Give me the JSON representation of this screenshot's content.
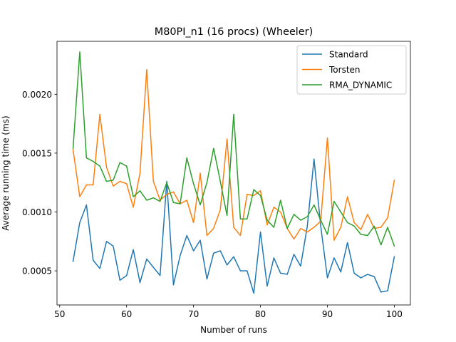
{
  "chart_data": {
    "type": "line",
    "title": "M80PI_n1 (16 procs) (Wheeler)",
    "xlabel": "Number of runs",
    "ylabel": "Average running time (ms)",
    "xlim": [
      49.6,
      102.4
    ],
    "ylim": [
      0.00021,
      0.00245
    ],
    "xticks": [
      50,
      60,
      70,
      80,
      90,
      100
    ],
    "yticks": [
      0.0005,
      0.001,
      0.0015,
      0.002
    ],
    "ytick_labels": [
      "0.0005",
      "0.0010",
      "0.0015",
      "0.0020"
    ],
    "grid": false,
    "legend_position": "top-right",
    "x": [
      52,
      53,
      54,
      55,
      56,
      57,
      58,
      59,
      60,
      61,
      62,
      63,
      64,
      65,
      66,
      67,
      68,
      69,
      70,
      71,
      72,
      73,
      74,
      75,
      76,
      77,
      78,
      79,
      80,
      81,
      82,
      83,
      84,
      85,
      86,
      87,
      88,
      89,
      90,
      91,
      92,
      93,
      94,
      95,
      96,
      97,
      98,
      99,
      100
    ],
    "series": [
      {
        "name": "Standard",
        "color": "#1f77b4",
        "values": [
          0.00058,
          0.00091,
          0.00106,
          0.00059,
          0.00052,
          0.00075,
          0.00071,
          0.00042,
          0.00046,
          0.00068,
          0.0004,
          0.0006,
          0.00053,
          0.00046,
          0.00126,
          0.00038,
          0.00063,
          0.0008,
          0.00067,
          0.00076,
          0.00043,
          0.00065,
          0.00067,
          0.00055,
          0.00062,
          0.0005,
          0.0005,
          0.00031,
          0.00083,
          0.00037,
          0.00061,
          0.00048,
          0.00047,
          0.00064,
          0.00054,
          0.00088,
          0.00145,
          0.00088,
          0.00044,
          0.00061,
          0.00049,
          0.00074,
          0.00048,
          0.00044,
          0.00047,
          0.00045,
          0.00032,
          0.00033,
          0.00062
        ]
      },
      {
        "name": "Torsten",
        "color": "#ff7f0e",
        "values": [
          0.00153,
          0.00113,
          0.00123,
          0.00123,
          0.00183,
          0.00138,
          0.00122,
          0.00126,
          0.00124,
          0.00104,
          0.00133,
          0.00221,
          0.00126,
          0.0011,
          0.00115,
          0.00117,
          0.00107,
          0.0011,
          0.00091,
          0.00133,
          0.0008,
          0.00086,
          0.00102,
          0.00162,
          0.00087,
          0.0008,
          0.00115,
          0.00114,
          0.00118,
          0.00089,
          0.00104,
          0.001,
          0.00086,
          0.00077,
          0.00086,
          0.00083,
          0.00087,
          0.00092,
          0.00163,
          0.00076,
          0.00087,
          0.00113,
          0.00091,
          0.00085,
          0.00098,
          0.00086,
          0.00087,
          0.00095,
          0.00127
        ]
      },
      {
        "name": "RMA_DYNAMIC",
        "color": "#2ca02c",
        "values": [
          0.00154,
          0.00236,
          0.00146,
          0.00143,
          0.00139,
          0.00126,
          0.00127,
          0.00142,
          0.00139,
          0.00113,
          0.00118,
          0.0011,
          0.00112,
          0.00109,
          0.00125,
          0.00108,
          0.00107,
          0.00146,
          0.00124,
          0.00106,
          0.00125,
          0.00154,
          0.00126,
          0.00097,
          0.00183,
          0.00094,
          0.00094,
          0.00119,
          0.00114,
          0.00093,
          0.00087,
          0.0011,
          0.00086,
          0.00098,
          0.00093,
          0.00096,
          0.00106,
          0.00093,
          0.00081,
          0.00109,
          0.001,
          0.00091,
          0.00088,
          0.00081,
          0.0008,
          0.00088,
          0.00072,
          0.00087,
          0.00071
        ]
      }
    ]
  }
}
